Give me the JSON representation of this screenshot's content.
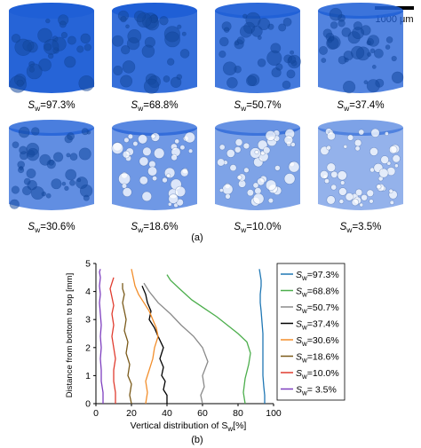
{
  "figure": {
    "scale_bar_label": "1000 μm",
    "panel_a_label": "(a)",
    "panel_b_label": "(b)",
    "sample_color": "#1f5fd6",
    "samples": [
      {
        "label_prefix": "S",
        "label_sub": "w",
        "label_value": "=97.3%",
        "density": 0.95
      },
      {
        "label_prefix": "S",
        "label_sub": "w",
        "label_value": "=68.8%",
        "density": 0.85
      },
      {
        "label_prefix": "S",
        "label_sub": "w",
        "label_value": "=50.7%",
        "density": 0.75
      },
      {
        "label_prefix": "S",
        "label_sub": "w",
        "label_value": "=37.4%",
        "density": 0.65
      },
      {
        "label_prefix": "S",
        "label_sub": "w",
        "label_value": "=30.6%",
        "density": 0.55
      },
      {
        "label_prefix": "S",
        "label_sub": "w",
        "label_value": "=18.6%",
        "density": 0.45
      },
      {
        "label_prefix": "S",
        "label_sub": "w",
        "label_value": "=10.0%",
        "density": 0.35
      },
      {
        "label_prefix": "S",
        "label_sub": "w",
        "label_value": "=3.5%",
        "density": 0.2
      }
    ]
  },
  "chart_data": {
    "type": "line",
    "ylabel": "Distance from bottom to top [mm]",
    "xlabel_prefix": "Vertical distribution of S",
    "xlabel_sub": "w",
    "xlabel_suffix": "[%]",
    "xlim": [
      0,
      100
    ],
    "ylim": [
      0,
      5
    ],
    "xticks": [
      "0",
      "20",
      "40",
      "60",
      "80",
      "100"
    ],
    "yticks": [
      "0",
      "1",
      "2",
      "3",
      "4",
      "5"
    ],
    "legend_position": "right",
    "series": [
      {
        "name_prefix": "S",
        "name_sub": "w",
        "name_value": "=97.3%",
        "color": "#1f77b4",
        "x": [
          95,
          95,
          94.5,
          94,
          94,
          94,
          94,
          94,
          93.5,
          93,
          92.5,
          92.5,
          93,
          93,
          92.5,
          92
        ],
        "y": [
          0,
          0.3,
          0.6,
          1.0,
          1.4,
          1.8,
          2.2,
          2.5,
          2.9,
          3.3,
          3.6,
          3.9,
          4.2,
          4.4,
          4.6,
          4.8
        ]
      },
      {
        "name_prefix": "S",
        "name_sub": "w",
        "name_value": "=68.8%",
        "color": "#4cae4c",
        "x": [
          84,
          83,
          84,
          86,
          87,
          85,
          80,
          74,
          68,
          61,
          54,
          47,
          42,
          40
        ],
        "y": [
          0,
          0.4,
          0.9,
          1.4,
          1.8,
          2.2,
          2.5,
          2.8,
          3.1,
          3.4,
          3.7,
          4.1,
          4.4,
          4.6
        ]
      },
      {
        "name_prefix": "S",
        "name_sub": "w",
        "name_value": "=50.7%",
        "color": "#8a8a8a",
        "x": [
          60,
          59,
          61,
          60,
          63,
          60,
          55,
          48,
          42,
          35,
          30,
          27
        ],
        "y": [
          0,
          0.3,
          0.6,
          1.0,
          1.5,
          2.0,
          2.4,
          2.8,
          3.2,
          3.6,
          4.0,
          4.3
        ]
      },
      {
        "name_prefix": "S",
        "name_sub": "w",
        "name_value": "=37.4%",
        "color": "#000000",
        "x": [
          40,
          40,
          38,
          39,
          37,
          38,
          36,
          38,
          35,
          33,
          30,
          31,
          29,
          28,
          26
        ],
        "y": [
          0,
          0.3,
          0.5,
          0.8,
          1.0,
          1.3,
          1.6,
          2.0,
          2.4,
          2.7,
          3.0,
          3.3,
          3.6,
          3.9,
          4.2
        ]
      },
      {
        "name_prefix": "S",
        "name_sub": "w",
        "name_value": "=30.6%",
        "color": "#f28e2b",
        "x": [
          28,
          29,
          28,
          30,
          32,
          33,
          35,
          34,
          32,
          30,
          27,
          24,
          22,
          21,
          20
        ],
        "y": [
          0,
          0.4,
          0.8,
          1.2,
          1.6,
          2.0,
          2.4,
          2.7,
          3.0,
          3.3,
          3.6,
          3.9,
          4.2,
          4.5,
          4.8
        ]
      },
      {
        "name_prefix": "S",
        "name_sub": "w",
        "name_value": "=18.6%",
        "color": "#7a5a1a",
        "x": [
          20,
          19,
          20,
          18,
          19,
          17,
          18,
          16,
          17,
          16,
          15,
          16,
          15,
          15
        ],
        "y": [
          0,
          0.3,
          0.7,
          1.0,
          1.4,
          1.8,
          2.2,
          2.6,
          3.0,
          3.3,
          3.6,
          3.9,
          4.1,
          4.3
        ]
      },
      {
        "name_prefix": "S",
        "name_sub": "w",
        "name_value": "=10.0%",
        "color": "#e03c2f",
        "x": [
          11,
          11,
          10,
          10,
          11,
          10,
          9,
          10,
          9,
          10,
          9,
          8,
          9,
          10
        ],
        "y": [
          0,
          0.4,
          0.8,
          1.2,
          1.6,
          2.0,
          2.4,
          2.8,
          3.2,
          3.5,
          3.8,
          4.1,
          4.3,
          4.5
        ]
      },
      {
        "name_prefix": "S",
        "name_sub": "w",
        "name_value": "= 3.5%",
        "color": "#7e3fbf",
        "x": [
          4,
          4,
          3,
          3,
          2.5,
          3,
          2.5,
          3,
          2.5,
          2,
          2.5,
          2,
          2.5,
          2,
          2.5
        ],
        "y": [
          0,
          0.4,
          0.8,
          1.2,
          1.6,
          2.0,
          2.4,
          2.8,
          3.2,
          3.6,
          3.9,
          4.2,
          4.5,
          4.7,
          4.8
        ]
      }
    ]
  }
}
